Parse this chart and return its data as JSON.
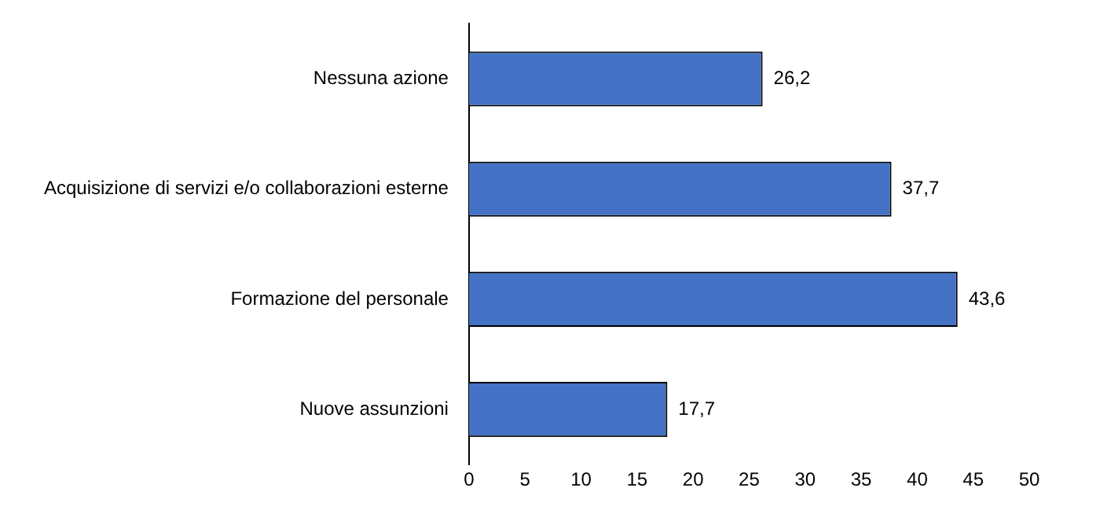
{
  "chart_data": {
    "type": "bar",
    "orientation": "horizontal",
    "categories": [
      "Nessuna azione",
      "Acquisizione di servizi e/o collaborazioni esterne",
      "Formazione del personale",
      "Nuove assunzioni"
    ],
    "values": [
      26.2,
      37.7,
      43.6,
      17.7
    ],
    "value_labels": [
      "26,2",
      "37,7",
      "43,6",
      "17,7"
    ],
    "color": "#4472c4",
    "xlim": [
      0,
      50
    ],
    "xticks": [
      0,
      5,
      10,
      15,
      20,
      25,
      30,
      35,
      40,
      45,
      50
    ],
    "grid": false,
    "legend": false
  }
}
